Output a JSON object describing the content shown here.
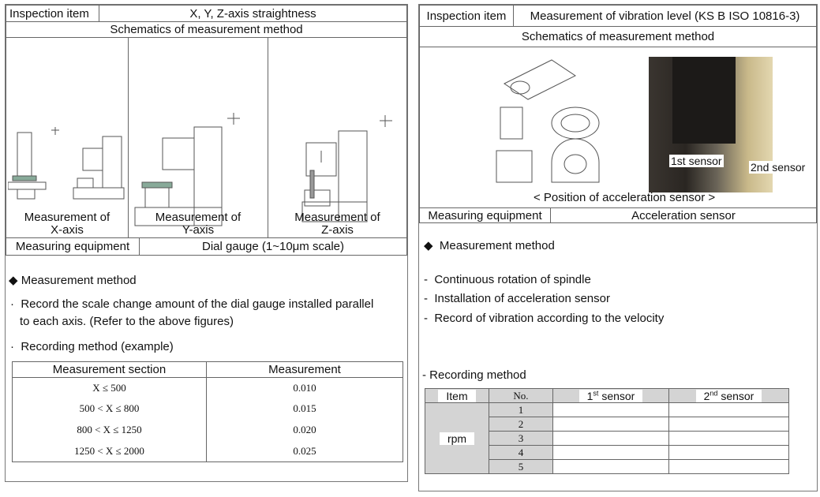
{
  "left": {
    "inspection_label": "Inspection item",
    "inspection_value": "X, Y, Z-axis straightness",
    "schematics_title": "Schematics of measurement method",
    "captions": [
      [
        "Measurement of",
        "X-axis"
      ],
      [
        "Measurement of",
        "Y-axis"
      ],
      [
        "Measurement of",
        "Z-axis"
      ]
    ],
    "equipment_label": "Measuring equipment",
    "equipment_value": "Dial gauge (1~10μm scale)",
    "method_title": "Measurement method",
    "bullet1_line1": "Record the scale change amount of the dial gauge installed parallel",
    "bullet1_line2": "to each axis. (Refer to the above figures)",
    "bullet2": "Recording method (example)",
    "table": {
      "headers": [
        "Measurement section",
        "Measurement"
      ],
      "rows": [
        [
          "X ≤ 500",
          "0.010"
        ],
        [
          "500 < X ≤ 800",
          "0.015"
        ],
        [
          "800 < X ≤ 1250",
          "0.020"
        ],
        [
          "1250 < X ≤ 2000",
          "0.025"
        ]
      ]
    }
  },
  "right": {
    "inspection_label": "Inspection item",
    "inspection_value": "Measurement of vibration level (KS B ISO 10816-3)",
    "schematics_title": "Schematics of measurement method",
    "sensor1_label": "1st sensor",
    "sensor2_label": "2nd sensor",
    "figure_caption": "< Position of acceleration sensor >",
    "equipment_label": "Measuring equipment",
    "equipment_value": "Acceleration sensor",
    "method_title": "Measurement method",
    "steps": [
      "Continuous rotation of spindle",
      "Installation of acceleration sensor",
      "Record of vibration according to the velocity"
    ],
    "recording_title": "Recording method",
    "table": {
      "headers": [
        "Item",
        "No.",
        "1st sensor",
        "2nd sensor"
      ],
      "row_label": "rpm",
      "numbers": [
        "1",
        "2",
        "3",
        "4",
        "5"
      ]
    }
  }
}
